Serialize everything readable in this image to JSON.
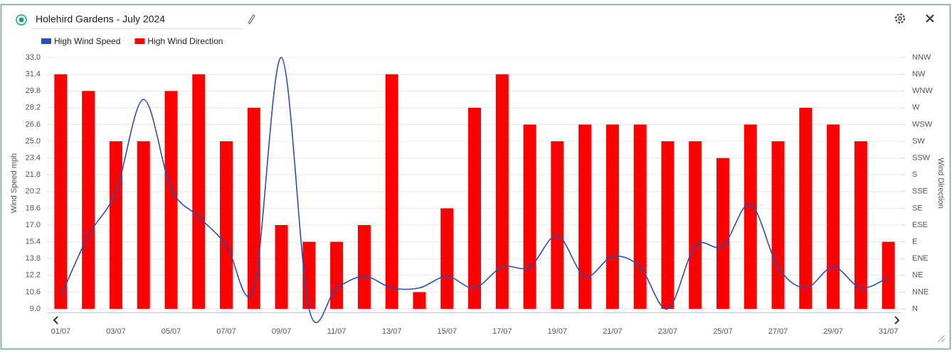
{
  "chart_data": {
    "type": "bar",
    "title": "Holehird Gardens - July 2024",
    "y_label": "Wind Speed mph",
    "y2_label": "Wind Direction",
    "categories": [
      "01/07",
      null,
      "03/07",
      null,
      "05/07",
      null,
      "07/07",
      null,
      "09/07",
      null,
      "11/07",
      null,
      "13/07",
      null,
      "15/07",
      null,
      "17/07",
      null,
      "19/07",
      null,
      "21/07",
      null,
      "23/07",
      null,
      "25/07",
      null,
      "27/07",
      null,
      "29/07",
      null,
      "31/07"
    ],
    "series": [
      {
        "name": "High Wind Speed",
        "type": "line",
        "color": "#2a4fb5",
        "values": [
          10.2,
          16.0,
          20.2,
          29.0,
          20.5,
          17.8,
          15.1,
          11.0,
          33.0,
          9.0,
          11.0,
          12.1,
          11.0,
          11.0,
          12.1,
          11.0,
          13.0,
          13.0,
          16.0,
          12.1,
          14.0,
          13.0,
          9.0,
          15.0,
          15.0,
          19.0,
          13.0,
          11.0,
          13.0,
          11.0,
          12.0
        ]
      },
      {
        "name": "High Wind Direction",
        "type": "bar",
        "color": "#ff0000",
        "axis": "y2",
        "values": [
          14,
          13,
          10,
          10,
          13,
          14,
          10,
          12,
          5,
          4,
          4,
          5,
          14,
          1,
          6,
          12,
          14,
          11,
          10,
          11,
          11,
          11,
          10,
          10,
          9,
          11,
          10,
          12,
          11,
          10,
          4
        ]
      }
    ],
    "ylim": [
      9,
      33
    ],
    "yticks": [
      {
        "value": 9,
        "label": "9.0"
      },
      10.6,
      12.2,
      13.8,
      15.4,
      {
        "value": 17,
        "label": "17.0"
      },
      18.6,
      20.2,
      21.8,
      23.4,
      {
        "value": 25,
        "label": "25.0"
      },
      26.6,
      28.2,
      29.8,
      31.4,
      {
        "value": 33,
        "label": "33.0"
      }
    ],
    "y2lim": [
      0,
      15
    ],
    "y2ticks": [
      {
        "value": 0,
        "label": "N"
      },
      {
        "value": 1,
        "label": "NNE"
      },
      {
        "value": 2,
        "label": "NE"
      },
      {
        "value": 3,
        "label": "ENE"
      },
      {
        "value": 4,
        "label": "E"
      },
      {
        "value": 5,
        "label": "ESE"
      },
      {
        "value": 6,
        "label": "SE"
      },
      {
        "value": 7,
        "label": "SSE"
      },
      {
        "value": 8,
        "label": "S"
      },
      {
        "value": 9,
        "label": "SSW"
      },
      {
        "value": 10,
        "label": "SW"
      },
      {
        "value": 11,
        "label": "WSW"
      },
      {
        "value": 12,
        "label": "W"
      },
      {
        "value": 13,
        "label": "WNW"
      },
      {
        "value": 14,
        "label": "NW"
      },
      {
        "value": 15,
        "label": "NNW"
      }
    ],
    "grid": true,
    "legend": "top-left"
  }
}
